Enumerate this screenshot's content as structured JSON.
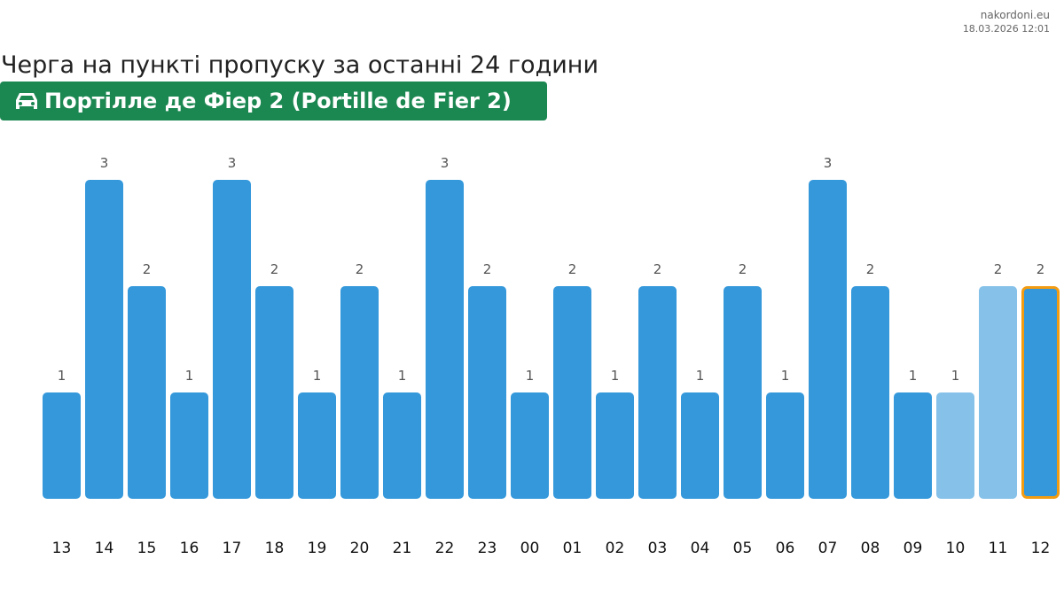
{
  "brand": {
    "site": "nakordoni.eu",
    "timestamp": "18.03.2026 12:01"
  },
  "header": {
    "title": "Черга на пункті пропуску за останні 24 години",
    "checkpoint": "Портілле де Фіер 2 (Portille de Fier 2)",
    "icon": "car-icon"
  },
  "colors": {
    "bar": "#3498db",
    "bar_light": "#85c1e9",
    "highlight_border": "#f39c12",
    "badge": "#1b8751"
  },
  "chart_data": {
    "type": "bar",
    "title": "Черга на пункті пропуску за останні 24 години",
    "categories": [
      "13",
      "14",
      "15",
      "16",
      "17",
      "18",
      "19",
      "20",
      "21",
      "22",
      "23",
      "00",
      "01",
      "02",
      "03",
      "04",
      "05",
      "06",
      "07",
      "08",
      "09",
      "10",
      "11",
      "12"
    ],
    "values": [
      1,
      3,
      2,
      1,
      3,
      2,
      1,
      2,
      1,
      3,
      2,
      1,
      2,
      1,
      2,
      1,
      2,
      1,
      3,
      2,
      1,
      1,
      2,
      2
    ],
    "light": [
      21,
      22
    ],
    "highlighted": 23,
    "ylim": [
      0,
      3
    ],
    "grid": false,
    "xlabel": "",
    "ylabel": ""
  }
}
